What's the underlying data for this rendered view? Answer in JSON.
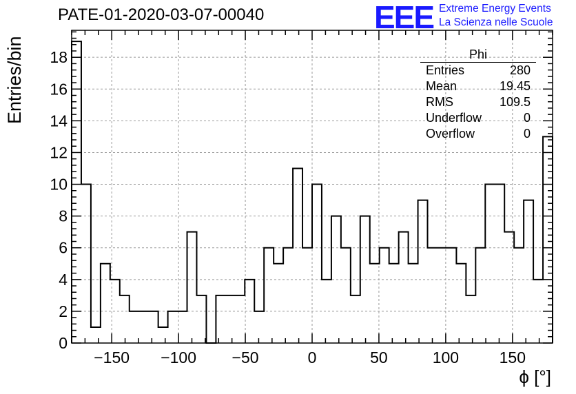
{
  "title": "PATE-01-2020-03-07-00040",
  "logo": {
    "mark": "EEE",
    "line1": "Extreme Energy Events",
    "line2": "La Scienza nelle Scuole"
  },
  "stats": {
    "name": "Phi",
    "rows": [
      {
        "label": "Entries",
        "value": "280"
      },
      {
        "label": "Mean",
        "value": "19.45"
      },
      {
        "label": "RMS",
        "value": "109.5"
      },
      {
        "label": "Underflow",
        "value": "0"
      },
      {
        "label": "Overflow",
        "value": "0"
      }
    ]
  },
  "colors": {
    "line": "#000000",
    "grid": "#999999",
    "logo": "#1a1aff"
  },
  "chart_data": {
    "type": "histogram",
    "xlabel": "ϕ [°]",
    "ylabel": "Entries/bin",
    "xlim": [
      -180,
      180
    ],
    "ylim": [
      0,
      19.7
    ],
    "xticks": [
      -150,
      -100,
      -50,
      0,
      50,
      100,
      150
    ],
    "yticks": [
      0,
      2,
      4,
      6,
      8,
      10,
      12,
      14,
      16,
      18
    ],
    "grid": true,
    "bin_width": 7.2,
    "counts": [
      19,
      10,
      1,
      5,
      4,
      3,
      2,
      2,
      2,
      1,
      2,
      2,
      7,
      3,
      0,
      3,
      3,
      3,
      4,
      2,
      6,
      5,
      6,
      11,
      6,
      10,
      4,
      8,
      6,
      3,
      8,
      5,
      6,
      5,
      7,
      5,
      9,
      6,
      6,
      6,
      5,
      3,
      6,
      10,
      10,
      7,
      6,
      9,
      4,
      13
    ]
  }
}
